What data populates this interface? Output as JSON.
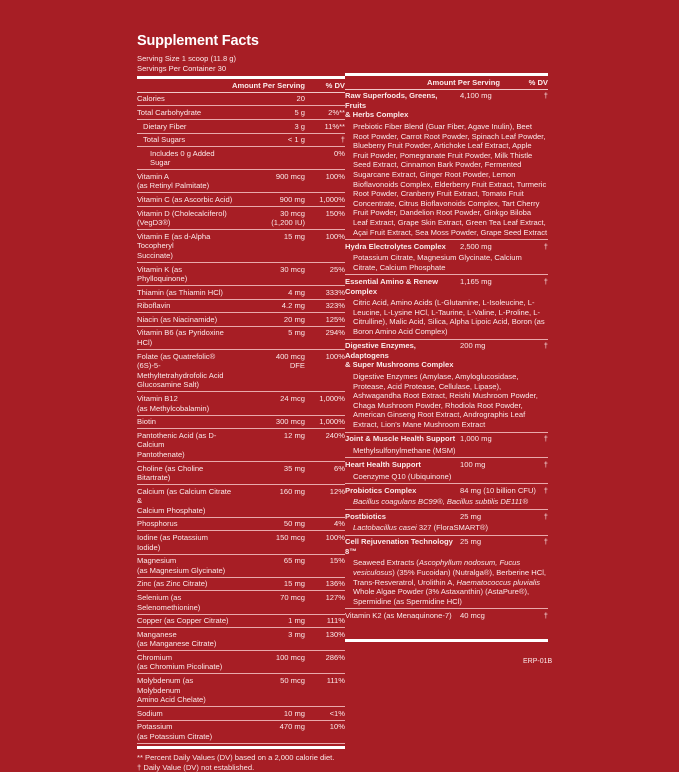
{
  "title": "Supplement Facts",
  "serving_size": "Serving Size 1 scoop (11.8 g)",
  "servings_per_container": "Servings Per Container 30",
  "header": {
    "amount": "Amount Per Serving",
    "dv": "% DV"
  },
  "left_rows": [
    {
      "name": "Calories",
      "amount": "20",
      "dv": "",
      "indent": 0
    },
    {
      "name": "Total Carbohydrate",
      "amount": "5 g",
      "dv": "2%**",
      "indent": 0
    },
    {
      "name": "Dietary Fiber",
      "amount": "3 g",
      "dv": "11%**",
      "indent": 1
    },
    {
      "name": "Total Sugars",
      "amount": "< 1 g",
      "dv": "†",
      "indent": 1
    },
    {
      "name": "Includes 0 g Added Sugar",
      "amount": "",
      "dv": "0%",
      "indent": 2
    },
    {
      "name": "Vitamin A\n(as Retinyl Palmitate)",
      "amount": "900 mcg",
      "dv": "100%",
      "indent": 0
    },
    {
      "name": "Vitamin C (as Ascorbic Acid)",
      "amount": "900 mg",
      "dv": "1,000%",
      "indent": 0
    },
    {
      "name": "Vitamin D (Cholecalciferol)\n(VegD3®)",
      "amount": "30 mcg\n(1,200 IU)",
      "dv": "150%",
      "indent": 0
    },
    {
      "name": "Vitamin E (as d-Alpha Tocopheryl\nSuccinate)",
      "amount": "15 mg",
      "dv": "100%",
      "indent": 0
    },
    {
      "name": "Vitamin K (as Phylloquinone)",
      "amount": "30 mcg",
      "dv": "25%",
      "indent": 0
    },
    {
      "name": "Thiamin (as Thiamin HCl)",
      "amount": "4 mg",
      "dv": "333%",
      "indent": 0
    },
    {
      "name": "Riboflavin",
      "amount": "4.2 mg",
      "dv": "323%",
      "indent": 0
    },
    {
      "name": "Niacin (as Niacinamide)",
      "amount": "20 mg",
      "dv": "125%",
      "indent": 0
    },
    {
      "name": "Vitamin B6 (as Pyridoxine HCl)",
      "amount": "5 mg",
      "dv": "294%",
      "indent": 0
    },
    {
      "name": "Folate (as Quatrefolic® (6S)-5-\nMethyltetrahydrofolic Acid\nGlucosamine Salt)",
      "amount": "400 mcg\nDFE",
      "dv": "100%",
      "indent": 0
    },
    {
      "name": "Vitamin B12\n(as Methylcobalamin)",
      "amount": "24 mcg",
      "dv": "1,000%",
      "indent": 0
    },
    {
      "name": "Biotin",
      "amount": "300 mcg",
      "dv": "1,000%",
      "indent": 0
    },
    {
      "name": "Pantothenic Acid (as D-Calcium\nPantothenate)",
      "amount": "12 mg",
      "dv": "240%",
      "indent": 0
    },
    {
      "name": "Choline (as Choline Bitartrate)",
      "amount": "35 mg",
      "dv": "6%",
      "indent": 0
    },
    {
      "name": "Calcium (as Calcium Citrate &\nCalcium Phosphate)",
      "amount": "160 mg",
      "dv": "12%",
      "indent": 0
    },
    {
      "name": "Phosphorus",
      "amount": "50 mg",
      "dv": "4%",
      "indent": 0
    },
    {
      "name": "Iodine (as Potassium Iodide)",
      "amount": "150 mcg",
      "dv": "100%",
      "indent": 0
    },
    {
      "name": "Magnesium\n(as Magnesium Glycinate)",
      "amount": "65 mg",
      "dv": "15%",
      "indent": 0
    },
    {
      "name": "Zinc (as Zinc Citrate)",
      "amount": "15 mg",
      "dv": "136%",
      "indent": 0
    },
    {
      "name": "Selenium (as Selenomethionine)",
      "amount": "70 mcg",
      "dv": "127%",
      "indent": 0
    },
    {
      "name": "Copper (as Copper Citrate)",
      "amount": "1 mg",
      "dv": "111%",
      "indent": 0
    },
    {
      "name": "Manganese\n(as Manganese Citrate)",
      "amount": "3 mg",
      "dv": "130%",
      "indent": 0
    },
    {
      "name": "Chromium\n(as Chromium Picolinate)",
      "amount": "100 mcg",
      "dv": "286%",
      "indent": 0
    },
    {
      "name": "Molybdenum (as Molybdenum\nAmino Acid Chelate)",
      "amount": "50 mcg",
      "dv": "111%",
      "indent": 0
    },
    {
      "name": "Sodium",
      "amount": "10 mg",
      "dv": "<1%",
      "indent": 0
    },
    {
      "name": "Potassium\n(as Potassium Citrate)",
      "amount": "470 mg",
      "dv": "10%",
      "indent": 0
    }
  ],
  "footnotes": [
    "** Percent Daily Values (DV) based on a 2,000 calorie diet.",
    "† Daily Value (DV) not established."
  ],
  "right_groups": [
    {
      "name": "Raw Superfoods, Greens, Fruits\n& Herbs Complex",
      "amount": "4,100 mg",
      "dv": "†",
      "desc": [
        {
          "t": "Prebiotic Fiber Blend (Guar Fiber, Agave Inulin), Beet Root Powder, Carrot Root Powder, Spinach Leaf Powder, Blueberry Fruit Powder, Artichoke Leaf Extract, Apple Fruit Powder, Pomegranate Fruit Powder, Milk Thistle Seed Extract, Cinnamon Bark Powder, Fermented Sugarcane Extract, Ginger Root Powder, Lemon Bioflavonoids Complex, Elderberry Fruit Extract, Turmeric Root Powder, Cranberry Fruit Extract, Tomato Fruit Concentrate, Citrus Bioflavonoids Complex, Tart Cherry Fruit Powder, Dandelion Root Powder, Ginkgo Biloba Leaf Extract, Grape Skin Extract, Green Tea Leaf Extract, Açai Fruit Extract, Sea Moss Powder, Grape Seed Extract",
          "i": false
        }
      ]
    },
    {
      "name": "Hydra Electrolytes Complex",
      "amount": "2,500 mg",
      "dv": "†",
      "desc": [
        {
          "t": "Potassium Citrate, Magnesium Glycinate, Calcium Citrate, Calcium Phosphate",
          "i": false
        }
      ]
    },
    {
      "name": "Essential Amino & Renew Complex",
      "amount": "1,165 mg",
      "dv": "†",
      "desc": [
        {
          "t": "Citric Acid, Amino Acids (L-Glutamine, L-Isoleucine, L-Leucine, L-Lysine HCl, L-Taurine, L-Valine, L-Proline, L-Citrulline), Malic Acid, Silica, Alpha Lipoic Acid, Boron (as Boron Amino Acid Complex)",
          "i": false
        }
      ]
    },
    {
      "name": "Digestive Enzymes, Adaptogens\n& Super Mushrooms Complex",
      "amount": "200 mg",
      "dv": "†",
      "desc": [
        {
          "t": "Digestive Enzymes (Amylase, Amyloglucosidase, Protease, Acid Protease, Cellulase, Lipase), Ashwagandha Root Extract, Reishi Mushroom Powder, Chaga Mushroom Powder, Rhodiola Root Powder, American Ginseng Root Extract, Andrographis Leaf Extract, Lion's Mane Mushroom Extract",
          "i": false
        }
      ]
    },
    {
      "name": "Joint & Muscle Health Support",
      "amount": "1,000 mg",
      "dv": "†",
      "desc": [
        {
          "t": "Methylsulfonylmethane (MSM)",
          "i": false
        }
      ]
    },
    {
      "name": "Heart Health Support",
      "amount": "100 mg",
      "dv": "†",
      "desc": [
        {
          "t": "Coenzyme Q10 (Ubiquinone)",
          "i": false
        }
      ]
    },
    {
      "name": "Probiotics Complex",
      "amount": "84 mg (10 billion CFU)",
      "dv": "†",
      "desc": [
        {
          "t": "Bacillus coagulans BC99®, Bacillus subtilis DE111®",
          "i": true
        }
      ]
    },
    {
      "name": "Postbiotics",
      "amount": "25 mg",
      "dv": "†",
      "desc": [
        {
          "t": "Lactobacillus casei",
          "i": true
        },
        {
          "t": " 327 (FloraSMART®)",
          "i": false
        }
      ]
    },
    {
      "name": "Cell Rejuvenation Technology 8™",
      "amount": "25 mg",
      "dv": "†",
      "desc": [
        {
          "t": "Seaweed Extracts (",
          "i": false
        },
        {
          "t": "Ascophyllum nodosum, Fucus vesiculosus",
          "i": true
        },
        {
          "t": ") (35% Fucoidan) (Nutralga®), Berberine HCl, Trans-Resveratrol, Urolithin A, ",
          "i": false
        },
        {
          "t": "Haematococcus pluvialis",
          "i": true
        },
        {
          "t": " Whole Algae Powder (3% Astaxanthin) (AstaPure®), Spermidine (as Spermidine HCl)",
          "i": false
        }
      ]
    }
  ],
  "vitamin_k2": {
    "name": "Vitamin K2 (as Menaquinone-7)",
    "amount": "40 mcg",
    "dv": "†"
  },
  "product_code": "ERP-01B"
}
